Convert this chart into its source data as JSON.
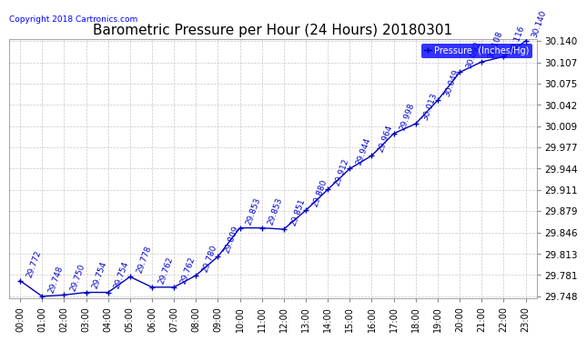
{
  "title": "Barometric Pressure per Hour (24 Hours) 20180301",
  "copyright": "Copyright 2018 Cartronics.com",
  "legend_label": "Pressure  (Inches/Hg)",
  "hours": [
    "00:00",
    "01:00",
    "02:00",
    "03:00",
    "04:00",
    "05:00",
    "06:00",
    "07:00",
    "08:00",
    "09:00",
    "10:00",
    "11:00",
    "12:00",
    "13:00",
    "14:00",
    "15:00",
    "16:00",
    "17:00",
    "18:00",
    "19:00",
    "20:00",
    "21:00",
    "22:00",
    "23:00"
  ],
  "values": [
    29.772,
    29.748,
    29.75,
    29.754,
    29.754,
    29.778,
    29.762,
    29.762,
    29.78,
    29.809,
    29.853,
    29.853,
    29.851,
    29.88,
    29.912,
    29.944,
    29.964,
    29.998,
    30.013,
    30.049,
    30.092,
    30.108,
    30.116,
    30.14
  ],
  "ylim_min": 29.748,
  "ylim_max": 30.14,
  "line_color": "#0000bb",
  "marker_color": "#0000bb",
  "label_color": "#0000cc",
  "bg_color": "#ffffff",
  "grid_color": "#c8c8c8",
  "title_fontsize": 11,
  "annot_fontsize": 6.5,
  "xtick_fontsize": 7,
  "ytick_fontsize": 7.5,
  "ytick_values": [
    29.748,
    29.781,
    29.813,
    29.846,
    29.879,
    29.911,
    29.944,
    29.977,
    30.009,
    30.042,
    30.075,
    30.107,
    30.14
  ]
}
